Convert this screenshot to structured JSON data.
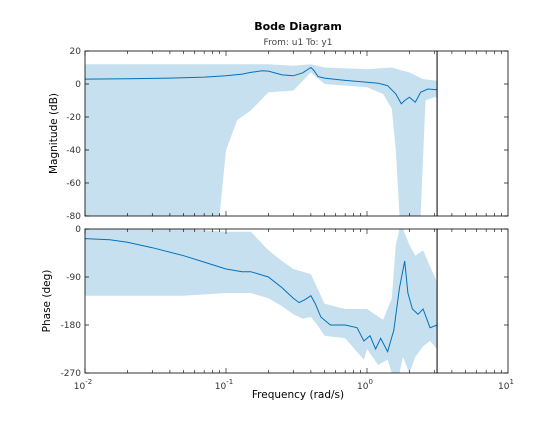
{
  "figure": {
    "title": "Bode Diagram",
    "subtitle": "From: u1  To: y1",
    "xlabel": "Frequency  (rad/s)"
  },
  "colors": {
    "line": "#0072BD",
    "band": "#c6e0f0",
    "axes": "#000000",
    "nyquist_line": "#000000"
  },
  "chart_data": [
    {
      "type": "line",
      "panel": "magnitude",
      "ylabel": "Magnitude (dB)",
      "xscale": "log",
      "xlim": [
        0.01,
        10
      ],
      "ylim": [
        -80,
        20
      ],
      "yticks": [
        20,
        0,
        -20,
        -40,
        -60,
        -80
      ],
      "yticklabels": [
        "20",
        "0",
        "-20",
        "-40",
        "-60",
        "-80"
      ],
      "grid": false,
      "vertical_line_x": 3.14,
      "series": [
        {
          "role": "estimate",
          "x": [
            0.01,
            0.02,
            0.04,
            0.07,
            0.1,
            0.13,
            0.15,
            0.18,
            0.2,
            0.25,
            0.3,
            0.35,
            0.38,
            0.4,
            0.42,
            0.45,
            0.5,
            0.6,
            0.7,
            0.85,
            1.0,
            1.2,
            1.4,
            1.6,
            1.75,
            1.85,
            2.0,
            2.2,
            2.4,
            2.7,
            3.14
          ],
          "y": [
            3,
            3.2,
            3.6,
            4.2,
            5.0,
            6.0,
            7.0,
            8.0,
            7.8,
            5.5,
            5.0,
            6.8,
            8.8,
            10.0,
            8.2,
            4.5,
            3.6,
            2.8,
            2.2,
            1.6,
            1.0,
            0.5,
            -1.0,
            -6.0,
            -12.0,
            -10.0,
            -8.0,
            -11.0,
            -5.0,
            -3.0,
            -3.5
          ]
        },
        {
          "role": "upper_bound",
          "x": [
            0.01,
            0.05,
            0.1,
            0.15,
            0.2,
            0.3,
            0.4,
            0.5,
            1.0,
            1.5,
            1.8,
            2.0,
            2.5,
            3.14
          ],
          "y": [
            12,
            12,
            12,
            12,
            12,
            11,
            12,
            10,
            9,
            10,
            8,
            7,
            3,
            2
          ]
        },
        {
          "role": "lower_bound",
          "x": [
            0.01,
            0.09,
            0.1,
            0.12,
            0.15,
            0.2,
            0.3,
            0.4,
            0.5,
            1.0,
            1.3,
            1.5,
            1.6,
            1.7,
            2.4,
            2.6,
            3.0,
            3.14
          ],
          "y": [
            -80,
            -80,
            -40,
            -22,
            -16,
            -5,
            -4,
            7,
            0,
            -2,
            -6,
            -15,
            -40,
            -80,
            -80,
            -10,
            -8,
            -8
          ]
        }
      ]
    },
    {
      "type": "line",
      "panel": "phase",
      "ylabel": "Phase (deg)",
      "xscale": "log",
      "xlim": [
        0.01,
        10
      ],
      "ylim": [
        -270,
        0
      ],
      "yticks": [
        0,
        -90,
        -180,
        -270
      ],
      "yticklabels": [
        "0",
        "-90",
        "-180",
        "-270"
      ],
      "xticks": [
        0.01,
        0.1,
        1,
        10
      ],
      "xticklabels": [
        [
          "10",
          "-2"
        ],
        [
          "10",
          "-1"
        ],
        [
          "10",
          "0"
        ],
        [
          "10",
          "1"
        ]
      ],
      "grid": false,
      "vertical_line_x": 3.14,
      "series": [
        {
          "role": "estimate",
          "x": [
            0.01,
            0.015,
            0.02,
            0.03,
            0.05,
            0.07,
            0.1,
            0.13,
            0.15,
            0.2,
            0.25,
            0.3,
            0.33,
            0.36,
            0.4,
            0.43,
            0.47,
            0.55,
            0.7,
            0.85,
            0.95,
            1.05,
            1.15,
            1.25,
            1.4,
            1.55,
            1.7,
            1.85,
            1.95,
            2.1,
            2.3,
            2.5,
            2.8,
            3.14
          ],
          "y": [
            -18,
            -20,
            -25,
            -35,
            -50,
            -62,
            -75,
            -80,
            -80,
            -90,
            -110,
            -130,
            -138,
            -133,
            -125,
            -140,
            -165,
            -180,
            -180,
            -185,
            -210,
            -200,
            -225,
            -205,
            -230,
            -190,
            -110,
            -60,
            -120,
            -150,
            -160,
            -150,
            -185,
            -180
          ]
        },
        {
          "role": "upper_bound",
          "x": [
            0.01,
            0.05,
            0.1,
            0.15,
            0.2,
            0.25,
            0.3,
            0.4,
            0.5,
            0.7,
            1.0,
            1.3,
            1.5,
            1.6,
            1.7,
            1.8,
            2.0,
            2.2,
            2.5,
            2.8,
            3.14
          ],
          "y": [
            0,
            0,
            -5,
            -5,
            -40,
            -60,
            -75,
            -85,
            -140,
            -150,
            -150,
            -170,
            -130,
            -30,
            0,
            0,
            -30,
            -50,
            -40,
            -70,
            -100
          ]
        },
        {
          "role": "lower_bound",
          "x": [
            0.01,
            0.05,
            0.1,
            0.15,
            0.2,
            0.25,
            0.3,
            0.35,
            0.4,
            0.45,
            0.5,
            0.7,
            0.95,
            1.0,
            1.2,
            1.4,
            1.5,
            1.7,
            1.8,
            2.0,
            2.2,
            2.5,
            2.8,
            3.14
          ],
          "y": [
            -125,
            -125,
            -120,
            -120,
            -130,
            -145,
            -160,
            -168,
            -165,
            -182,
            -200,
            -205,
            -245,
            -225,
            -255,
            -245,
            -270,
            -270,
            -240,
            -270,
            -240,
            -220,
            -210,
            -225
          ]
        }
      ]
    }
  ]
}
